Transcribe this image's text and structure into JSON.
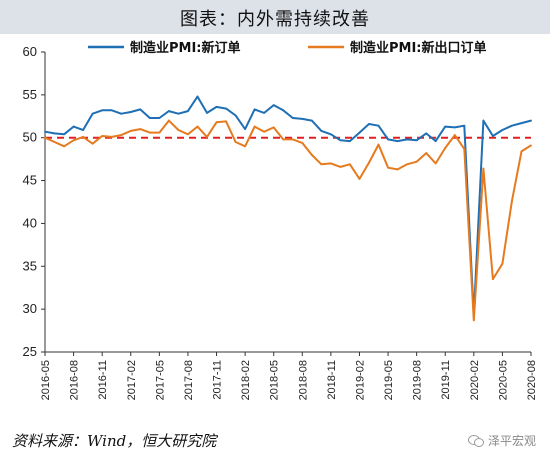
{
  "title": "图表：内外需持续改善",
  "source": "资料来源：Wind，恒大研究院",
  "watermark": "泽平宏观",
  "chart_data": {
    "type": "line",
    "yticks": [
      25,
      30,
      35,
      40,
      45,
      50,
      55,
      60
    ],
    "ylim": [
      25,
      60
    ],
    "xticks": [
      "2016-05",
      "2016-08",
      "2016-11",
      "2017-02",
      "2017-05",
      "2017-08",
      "2017-11",
      "2018-02",
      "2018-05",
      "2018-08",
      "2018-11",
      "2019-02",
      "2019-05",
      "2019-08",
      "2019-11",
      "2020-02",
      "2020-05",
      "2020-08"
    ],
    "x": [
      "2016-05",
      "2016-06",
      "2016-07",
      "2016-08",
      "2016-09",
      "2016-10",
      "2016-11",
      "2016-12",
      "2017-01",
      "2017-02",
      "2017-03",
      "2017-04",
      "2017-05",
      "2017-06",
      "2017-07",
      "2017-08",
      "2017-09",
      "2017-10",
      "2017-11",
      "2017-12",
      "2018-01",
      "2018-02",
      "2018-03",
      "2018-04",
      "2018-05",
      "2018-06",
      "2018-07",
      "2018-08",
      "2018-09",
      "2018-10",
      "2018-11",
      "2018-12",
      "2019-01",
      "2019-02",
      "2019-03",
      "2019-04",
      "2019-05",
      "2019-06",
      "2019-07",
      "2019-08",
      "2019-09",
      "2019-10",
      "2019-11",
      "2019-12",
      "2020-01",
      "2020-02",
      "2020-03",
      "2020-04",
      "2020-05",
      "2020-06",
      "2020-07",
      "2020-08"
    ],
    "series": [
      {
        "name": "制造业PMI:新订单",
        "color": "#1f6fb5",
        "values": [
          50.7,
          50.5,
          50.4,
          51.3,
          50.9,
          52.8,
          53.2,
          53.2,
          52.8,
          53.0,
          53.3,
          52.3,
          52.3,
          53.1,
          52.8,
          53.1,
          54.8,
          52.9,
          53.6,
          53.4,
          52.6,
          51.0,
          53.3,
          52.9,
          53.8,
          53.2,
          52.3,
          52.2,
          52.0,
          50.8,
          50.4,
          49.7,
          49.6,
          50.6,
          51.6,
          51.4,
          49.8,
          49.6,
          49.8,
          49.7,
          50.5,
          49.6,
          51.3,
          51.2,
          51.4,
          29.3,
          52.0,
          50.2,
          50.9,
          51.4,
          51.7,
          52.0
        ]
      },
      {
        "name": "制造业PMI:新出口订单",
        "color": "#e67a1e",
        "values": [
          50.0,
          49.5,
          49.0,
          49.7,
          50.1,
          49.3,
          50.2,
          50.1,
          50.3,
          50.8,
          51.0,
          50.6,
          50.6,
          52.0,
          50.9,
          50.4,
          51.3,
          50.1,
          51.8,
          51.9,
          49.5,
          49.0,
          51.3,
          50.7,
          51.2,
          49.8,
          49.8,
          49.4,
          48.0,
          46.9,
          47.0,
          46.6,
          46.9,
          45.2,
          47.1,
          49.2,
          46.5,
          46.3,
          46.9,
          47.2,
          48.2,
          47.0,
          48.8,
          50.3,
          48.7,
          28.7,
          46.4,
          33.5,
          35.3,
          42.6,
          48.4,
          49.1
        ]
      }
    ],
    "reference_line": {
      "value": 50,
      "color": "#e02020",
      "style": "dashed"
    },
    "legend_placement": "top"
  }
}
